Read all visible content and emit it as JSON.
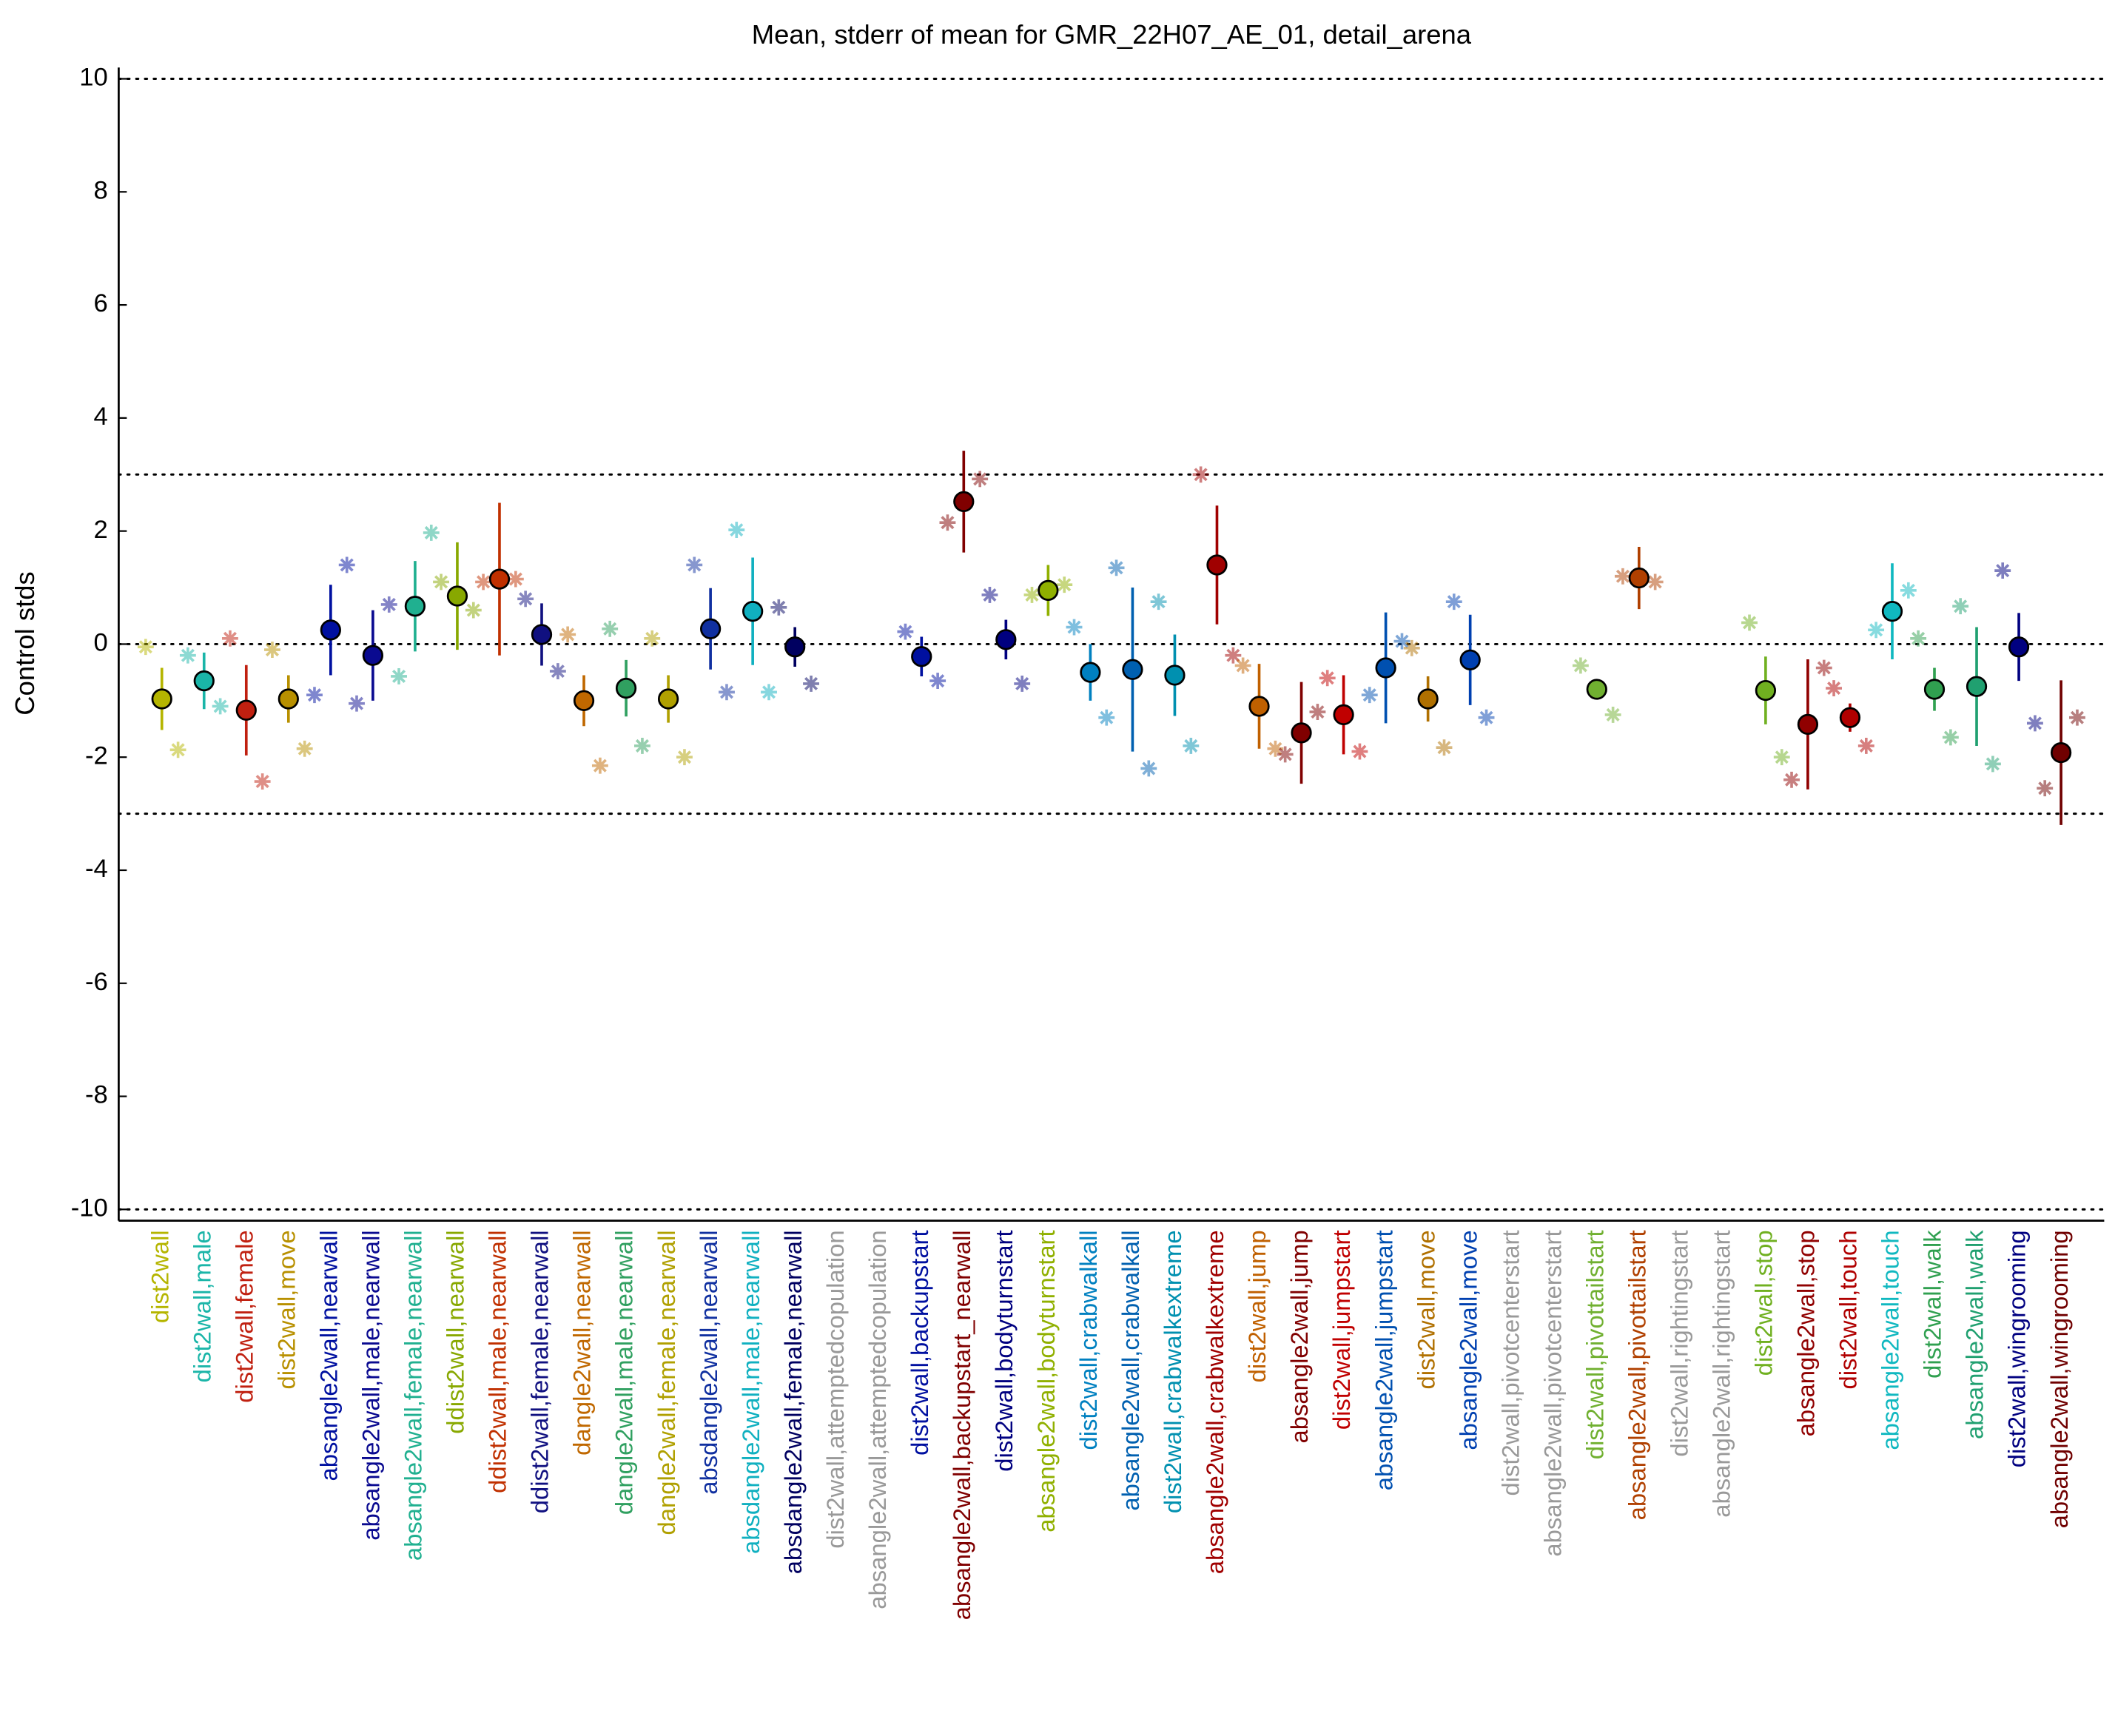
{
  "chart_data": {
    "type": "errorbar",
    "title": "Mean, stderr of mean for GMR_22H07_AE_01, detail_arena",
    "ylabel": "Control stds",
    "ylim": [
      -10.2,
      10.2
    ],
    "yticks": [
      -10,
      -8,
      -6,
      -4,
      -2,
      0,
      2,
      4,
      6,
      8,
      10
    ],
    "reference_lines": [
      -10,
      -3,
      0,
      3,
      10
    ],
    "categories": [
      "dist2wall",
      "dist2wall,male",
      "dist2wall,female",
      "dist2wall,move",
      "absangle2wall,nearwall",
      "absangle2wall,male,nearwall",
      "absangle2wall,female,nearwall",
      "ddist2wall,nearwall",
      "ddist2wall,male,nearwall",
      "ddist2wall,female,nearwall",
      "dangle2wall,nearwall",
      "dangle2wall,male,nearwall",
      "dangle2wall,female,nearwall",
      "absdangle2wall,nearwall",
      "absdangle2wall,male,nearwall",
      "absdangle2wall,female,nearwall",
      "dist2wall,attemptedcopulation",
      "absangle2wall,attemptedcopulation",
      "dist2wall,backupstart",
      "absangle2wall,backupstart_nearwall",
      "dist2wall,bodyturnstart",
      "absangle2wall,bodyturnstart",
      "dist2wall,crabwalkall",
      "absangle2wall,crabwalkall",
      "dist2wall,crabwalkextreme",
      "absangle2wall,crabwalkextreme",
      "dist2wall,jump",
      "absangle2wall,jump",
      "dist2wall,jumpstart",
      "absangle2wall,jumpstart",
      "dist2wall,move",
      "absangle2wall,move",
      "dist2wall,pivotcenterstart",
      "absangle2wall,pivotcenterstart",
      "dist2wall,pivottailstart",
      "absangle2wall,pivottailstart",
      "dist2wall,rightingstart",
      "absangle2wall,rightingstart",
      "dist2wall,stop",
      "absangle2wall,stop",
      "dist2wall,touch",
      "absangle2wall,touch",
      "dist2wall,walk",
      "absangle2wall,walk",
      "dist2wall,wingrooming",
      "absangle2wall,wingrooming"
    ],
    "colors": [
      "#b5b500",
      "#1ab5a8",
      "#c02010",
      "#b89000",
      "#0010a0",
      "#0a0a90",
      "#20b090",
      "#88a800",
      "#c03000",
      "#101080",
      "#c06800",
      "#30a060",
      "#b0a000",
      "#1030a0",
      "#10b0c0",
      "#000060",
      "#999999",
      "#999999",
      "#0010a0",
      "#800000",
      "#000080",
      "#90b000",
      "#0080c0",
      "#0060b0",
      "#0090b0",
      "#a00000",
      "#c06000",
      "#800000",
      "#c00000",
      "#0050b0",
      "#b07000",
      "#0040b0",
      "#999999",
      "#999999",
      "#70b030",
      "#b04000",
      "#999999",
      "#999999",
      "#70b020",
      "#900000",
      "#b00000",
      "#10b8c0",
      "#30a050",
      "#20a070",
      "#000080",
      "#700000"
    ],
    "values": [
      -0.97,
      -0.65,
      -1.17,
      -0.97,
      0.25,
      -0.2,
      0.67,
      0.85,
      1.15,
      0.17,
      -1.0,
      -0.78,
      -0.97,
      0.27,
      0.58,
      -0.05,
      null,
      null,
      -0.22,
      2.52,
      0.08,
      0.95,
      -0.5,
      -0.45,
      -0.55,
      1.4,
      -1.1,
      -1.57,
      -1.25,
      -0.42,
      -0.97,
      -0.28,
      null,
      null,
      -0.8,
      1.17,
      null,
      null,
      -0.82,
      -1.42,
      -1.3,
      0.58,
      -0.8,
      -0.75,
      -0.05,
      -1.92
    ],
    "errors": [
      0.55,
      0.5,
      0.8,
      0.42,
      0.8,
      0.8,
      0.8,
      0.95,
      1.35,
      0.55,
      0.45,
      0.5,
      0.42,
      0.72,
      0.95,
      0.35,
      null,
      null,
      0.35,
      0.9,
      0.35,
      0.45,
      0.5,
      1.45,
      0.72,
      1.05,
      0.75,
      0.9,
      0.7,
      0.98,
      0.4,
      0.8,
      null,
      null,
      0.1,
      0.55,
      null,
      null,
      0.6,
      1.15,
      0.25,
      0.85,
      0.38,
      1.05,
      0.6,
      1.28
    ],
    "markers_a": [
      -0.05,
      -0.2,
      0.1,
      -0.1,
      -0.9,
      -1.05,
      -0.57,
      1.1,
      1.1,
      0.8,
      0.17,
      0.27,
      0.1,
      1.4,
      2.02,
      0.65,
      null,
      null,
      0.22,
      2.15,
      0.87,
      0.87,
      0.3,
      1.35,
      0.75,
      3.0,
      -0.38,
      -1.95,
      -0.6,
      -0.9,
      -0.07,
      0.75,
      null,
      null,
      -0.38,
      1.2,
      null,
      null,
      0.38,
      -2.4,
      -0.78,
      0.25,
      0.1,
      0.67,
      1.3,
      -2.55
    ],
    "markers_b": [
      -1.87,
      -1.1,
      -2.43,
      -1.85,
      1.4,
      0.7,
      1.97,
      0.6,
      1.15,
      -0.48,
      -2.15,
      -1.8,
      -2.0,
      -0.85,
      -0.85,
      -0.7,
      null,
      null,
      -0.65,
      2.92,
      -0.7,
      1.05,
      -1.3,
      -2.2,
      -1.8,
      -0.2,
      -1.85,
      -1.2,
      -1.9,
      0.05,
      -1.83,
      -1.3,
      null,
      null,
      -1.25,
      1.1,
      null,
      null,
      -2.0,
      -0.42,
      -1.8,
      0.95,
      -1.65,
      -2.12,
      -1.4,
      -1.3
    ]
  }
}
